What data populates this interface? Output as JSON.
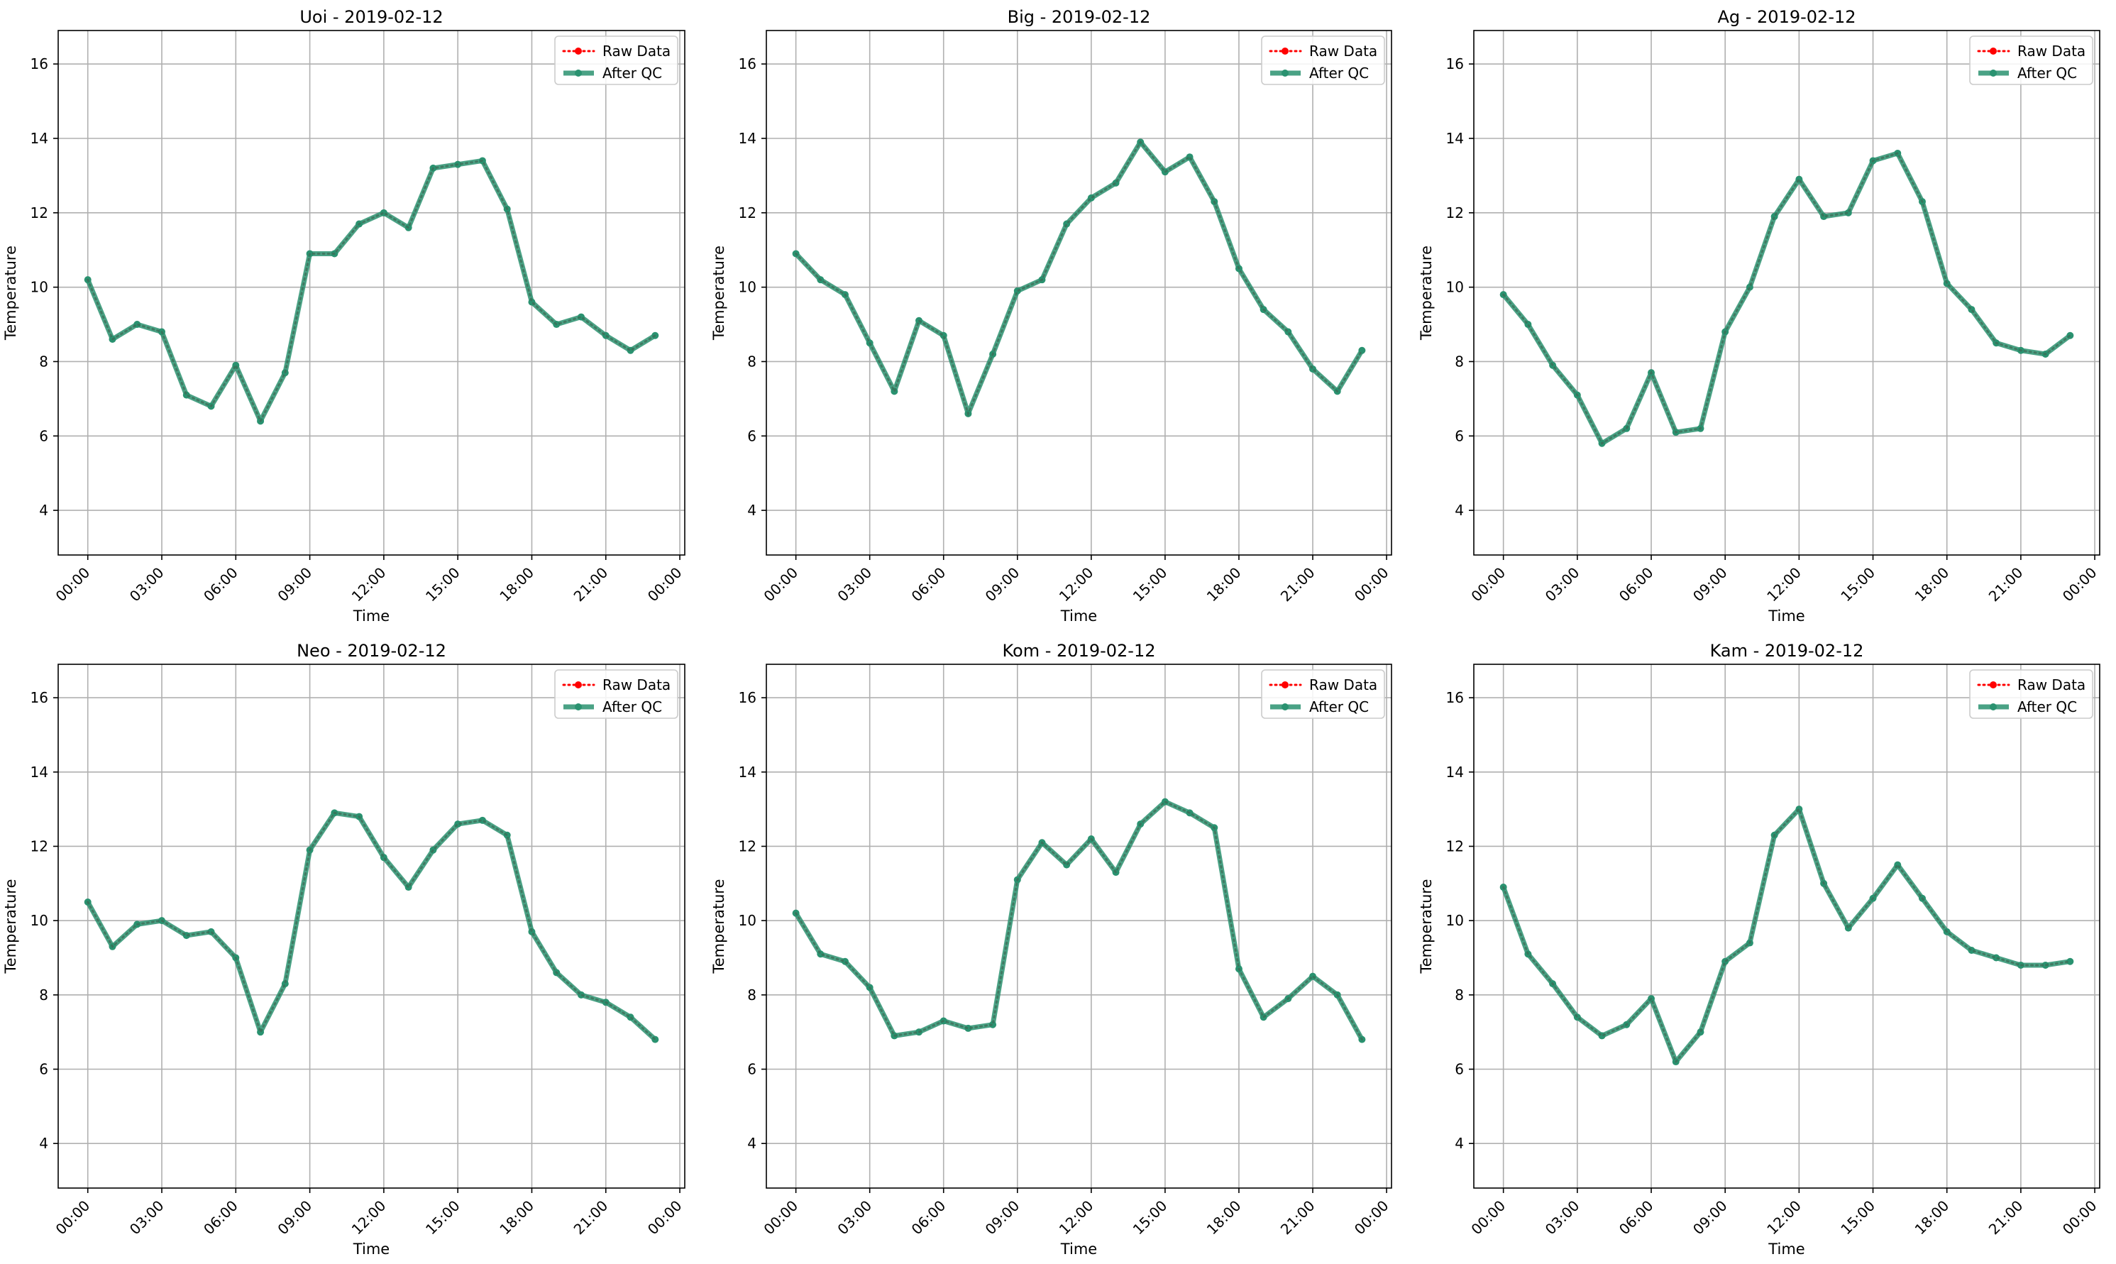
{
  "figure": {
    "ylabel": "Temperature",
    "xlabel": "Time"
  },
  "chart_data": [
    {
      "type": "line",
      "title": "Uoi - 2019-02-12",
      "xlabel": "Time",
      "ylabel": "Temperature",
      "x_ticks": [
        "00:00",
        "03:00",
        "06:00",
        "09:00",
        "12:00",
        "15:00",
        "18:00",
        "21:00",
        "00:00"
      ],
      "y_ticks": [
        4,
        6,
        8,
        10,
        12,
        14,
        16
      ],
      "xlim_hours": [
        -1.2,
        24.2
      ],
      "ylim": [
        2.8,
        16.9
      ],
      "grid": true,
      "legend": {
        "position": "top-right",
        "entries": [
          "Raw Data",
          "After QC"
        ]
      },
      "x_hours": [
        0,
        1,
        2,
        3,
        4,
        5,
        6,
        7,
        8,
        9,
        10,
        11,
        12,
        13,
        14,
        15,
        16,
        17,
        18,
        19,
        20,
        21,
        22,
        23
      ],
      "series": [
        {
          "name": "Raw Data",
          "color": "#ff0000",
          "style": "dotted",
          "values": [
            10.2,
            8.6,
            9.0,
            8.8,
            7.1,
            6.8,
            7.9,
            6.4,
            7.7,
            10.9,
            10.9,
            11.7,
            12.0,
            11.6,
            13.2,
            13.3,
            13.4,
            12.1,
            9.6,
            9.0,
            9.2,
            8.7,
            8.3,
            8.7
          ]
        },
        {
          "name": "After QC",
          "color": "#2a9270",
          "style": "solid",
          "values": [
            10.2,
            8.6,
            9.0,
            8.8,
            7.1,
            6.8,
            7.9,
            6.4,
            7.7,
            10.9,
            10.9,
            11.7,
            12.0,
            11.6,
            13.2,
            13.3,
            13.4,
            12.1,
            9.6,
            9.0,
            9.2,
            8.7,
            8.3,
            8.7
          ]
        }
      ]
    },
    {
      "type": "line",
      "title": "Big - 2019-02-12",
      "xlabel": "Time",
      "ylabel": "Temperature",
      "x_ticks": [
        "00:00",
        "03:00",
        "06:00",
        "09:00",
        "12:00",
        "15:00",
        "18:00",
        "21:00",
        "00:00"
      ],
      "y_ticks": [
        4,
        6,
        8,
        10,
        12,
        14,
        16
      ],
      "xlim_hours": [
        -1.2,
        24.2
      ],
      "ylim": [
        2.8,
        16.9
      ],
      "grid": true,
      "legend": {
        "position": "top-right",
        "entries": [
          "Raw Data",
          "After QC"
        ]
      },
      "x_hours": [
        0,
        1,
        2,
        3,
        4,
        5,
        6,
        7,
        8,
        9,
        10,
        11,
        12,
        13,
        14,
        15,
        16,
        17,
        18,
        19,
        20,
        21,
        22,
        23
      ],
      "series": [
        {
          "name": "Raw Data",
          "color": "#ff0000",
          "style": "dotted",
          "values": [
            10.9,
            10.2,
            9.8,
            8.5,
            7.2,
            9.1,
            8.7,
            6.6,
            8.2,
            9.9,
            10.2,
            11.7,
            12.4,
            12.8,
            13.9,
            13.1,
            13.5,
            12.3,
            10.5,
            9.4,
            8.8,
            7.8,
            7.2,
            8.3
          ]
        },
        {
          "name": "After QC",
          "color": "#2a9270",
          "style": "solid",
          "values": [
            10.9,
            10.2,
            9.8,
            8.5,
            7.2,
            9.1,
            8.7,
            6.6,
            8.2,
            9.9,
            10.2,
            11.7,
            12.4,
            12.8,
            13.9,
            13.1,
            13.5,
            12.3,
            10.5,
            9.4,
            8.8,
            7.8,
            7.2,
            8.3
          ]
        }
      ]
    },
    {
      "type": "line",
      "title": "Ag - 2019-02-12",
      "xlabel": "Time",
      "ylabel": "Temperature",
      "x_ticks": [
        "00:00",
        "03:00",
        "06:00",
        "09:00",
        "12:00",
        "15:00",
        "18:00",
        "21:00",
        "00:00"
      ],
      "y_ticks": [
        4,
        6,
        8,
        10,
        12,
        14,
        16
      ],
      "xlim_hours": [
        -1.2,
        24.2
      ],
      "ylim": [
        2.8,
        16.9
      ],
      "grid": true,
      "legend": {
        "position": "top-right",
        "entries": [
          "Raw Data",
          "After QC"
        ]
      },
      "x_hours": [
        0,
        1,
        2,
        3,
        4,
        5,
        6,
        7,
        8,
        9,
        10,
        11,
        12,
        13,
        14,
        15,
        16,
        17,
        18,
        19,
        20,
        21,
        22,
        23
      ],
      "series": [
        {
          "name": "Raw Data",
          "color": "#ff0000",
          "style": "dotted",
          "values": [
            9.8,
            9.0,
            7.9,
            7.1,
            5.8,
            6.2,
            7.7,
            6.1,
            6.2,
            8.8,
            10.0,
            11.9,
            12.9,
            11.9,
            12.0,
            13.4,
            13.6,
            12.3,
            10.1,
            9.4,
            8.5,
            8.3,
            8.2,
            8.7
          ]
        },
        {
          "name": "After QC",
          "color": "#2a9270",
          "style": "solid",
          "values": [
            9.8,
            9.0,
            7.9,
            7.1,
            5.8,
            6.2,
            7.7,
            6.1,
            6.2,
            8.8,
            10.0,
            11.9,
            12.9,
            11.9,
            12.0,
            13.4,
            13.6,
            12.3,
            10.1,
            9.4,
            8.5,
            8.3,
            8.2,
            8.7
          ]
        }
      ]
    },
    {
      "type": "line",
      "title": "Neo - 2019-02-12",
      "xlabel": "Time",
      "ylabel": "Temperature",
      "x_ticks": [
        "00:00",
        "03:00",
        "06:00",
        "09:00",
        "12:00",
        "15:00",
        "18:00",
        "21:00",
        "00:00"
      ],
      "y_ticks": [
        4,
        6,
        8,
        10,
        12,
        14,
        16
      ],
      "xlim_hours": [
        -1.2,
        24.2
      ],
      "ylim": [
        2.8,
        16.9
      ],
      "grid": true,
      "legend": {
        "position": "top-right",
        "entries": [
          "Raw Data",
          "After QC"
        ]
      },
      "x_hours": [
        0,
        1,
        2,
        3,
        4,
        5,
        6,
        7,
        8,
        9,
        10,
        11,
        12,
        13,
        14,
        15,
        16,
        17,
        18,
        19,
        20,
        21,
        22,
        23
      ],
      "series": [
        {
          "name": "Raw Data",
          "color": "#ff0000",
          "style": "dotted",
          "values": [
            10.5,
            9.3,
            9.9,
            10.0,
            9.6,
            9.7,
            9.0,
            7.0,
            8.3,
            11.9,
            12.9,
            12.8,
            11.7,
            10.9,
            11.9,
            12.6,
            12.7,
            12.3,
            9.7,
            8.6,
            8.0,
            7.8,
            7.4,
            6.8
          ]
        },
        {
          "name": "After QC",
          "color": "#2a9270",
          "style": "solid",
          "values": [
            10.5,
            9.3,
            9.9,
            10.0,
            9.6,
            9.7,
            9.0,
            7.0,
            8.3,
            11.9,
            12.9,
            12.8,
            11.7,
            10.9,
            11.9,
            12.6,
            12.7,
            12.3,
            9.7,
            8.6,
            8.0,
            7.8,
            7.4,
            6.8
          ]
        }
      ]
    },
    {
      "type": "line",
      "title": "Kom - 2019-02-12",
      "xlabel": "Time",
      "ylabel": "Temperature",
      "x_ticks": [
        "00:00",
        "03:00",
        "06:00",
        "09:00",
        "12:00",
        "15:00",
        "18:00",
        "21:00",
        "00:00"
      ],
      "y_ticks": [
        4,
        6,
        8,
        10,
        12,
        14,
        16
      ],
      "xlim_hours": [
        -1.2,
        24.2
      ],
      "ylim": [
        2.8,
        16.9
      ],
      "grid": true,
      "legend": {
        "position": "top-right",
        "entries": [
          "Raw Data",
          "After QC"
        ]
      },
      "x_hours": [
        0,
        1,
        2,
        3,
        4,
        5,
        6,
        7,
        8,
        9,
        10,
        11,
        12,
        13,
        14,
        15,
        16,
        17,
        18,
        19,
        20,
        21,
        22,
        23
      ],
      "series": [
        {
          "name": "Raw Data",
          "color": "#ff0000",
          "style": "dotted",
          "values": [
            10.2,
            9.1,
            8.9,
            8.2,
            6.9,
            7.0,
            7.3,
            7.1,
            7.2,
            11.1,
            12.1,
            11.5,
            12.2,
            11.3,
            12.6,
            13.2,
            12.9,
            12.5,
            8.7,
            7.4,
            7.9,
            8.5,
            8.0,
            6.8
          ]
        },
        {
          "name": "After QC",
          "color": "#2a9270",
          "style": "solid",
          "values": [
            10.2,
            9.1,
            8.9,
            8.2,
            6.9,
            7.0,
            7.3,
            7.1,
            7.2,
            11.1,
            12.1,
            11.5,
            12.2,
            11.3,
            12.6,
            13.2,
            12.9,
            12.5,
            8.7,
            7.4,
            7.9,
            8.5,
            8.0,
            6.8
          ]
        }
      ]
    },
    {
      "type": "line",
      "title": "Kam - 2019-02-12",
      "xlabel": "Time",
      "ylabel": "Temperature",
      "x_ticks": [
        "00:00",
        "03:00",
        "06:00",
        "09:00",
        "12:00",
        "15:00",
        "18:00",
        "21:00",
        "00:00"
      ],
      "y_ticks": [
        4,
        6,
        8,
        10,
        12,
        14,
        16
      ],
      "xlim_hours": [
        -1.2,
        24.2
      ],
      "ylim": [
        2.8,
        16.9
      ],
      "grid": true,
      "legend": {
        "position": "top-right",
        "entries": [
          "Raw Data",
          "After QC"
        ]
      },
      "x_hours": [
        0,
        1,
        2,
        3,
        4,
        5,
        6,
        7,
        8,
        9,
        10,
        11,
        12,
        13,
        14,
        15,
        16,
        17,
        18,
        19,
        20,
        21,
        22,
        23
      ],
      "series": [
        {
          "name": "Raw Data",
          "color": "#ff0000",
          "style": "dotted",
          "values": [
            10.9,
            9.1,
            8.3,
            7.4,
            6.9,
            7.2,
            7.9,
            6.2,
            7.0,
            8.9,
            9.4,
            12.3,
            13.0,
            11.0,
            9.8,
            10.6,
            11.5,
            10.6,
            9.7,
            9.2,
            9.0,
            8.8,
            8.8,
            8.9
          ]
        },
        {
          "name": "After QC",
          "color": "#2a9270",
          "style": "solid",
          "values": [
            10.9,
            9.1,
            8.3,
            7.4,
            6.9,
            7.2,
            7.9,
            6.2,
            7.0,
            8.9,
            9.4,
            12.3,
            13.0,
            11.0,
            9.8,
            10.6,
            11.5,
            10.6,
            9.7,
            9.2,
            9.0,
            8.8,
            8.8,
            8.9
          ]
        }
      ]
    }
  ]
}
